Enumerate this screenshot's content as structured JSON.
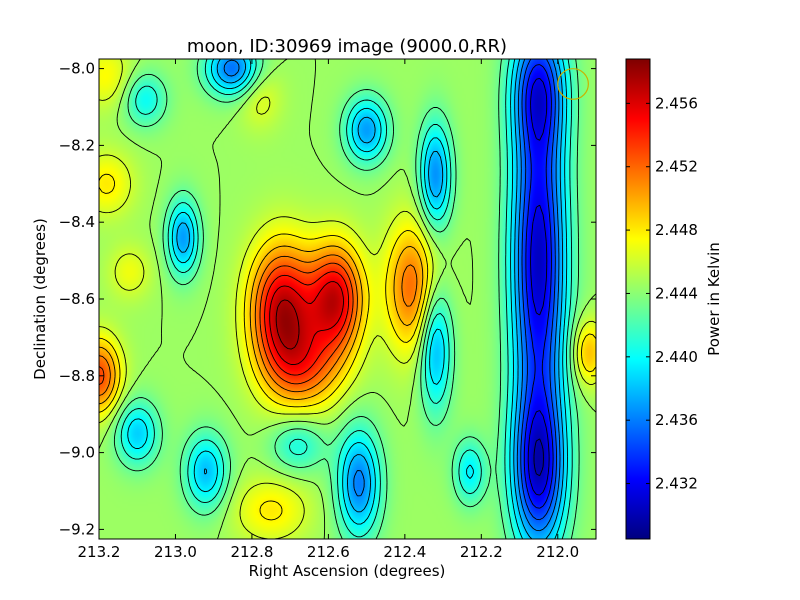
{
  "chart_data": {
    "type": "heatmap",
    "title": "moon, ID:30969 image (9000.0,RR)",
    "xlabel": "Right Ascension (degrees)",
    "ylabel": "Declination (degrees)",
    "colorbar_label": "Power in Kelvin",
    "colormap": "jet",
    "contours": true,
    "grid": false,
    "xlim": [
      213.2,
      211.9
    ],
    "ylim": [
      -9.225,
      -7.975
    ],
    "clim": [
      2.4285,
      2.4588
    ],
    "x_ticks": [
      213.2,
      213.0,
      212.8,
      212.6,
      212.4,
      212.2,
      212.0
    ],
    "x_tick_labels": [
      "213.2",
      "213.0",
      "212.8",
      "212.6",
      "212.4",
      "212.2",
      "212.0"
    ],
    "y_ticks": [
      -8.0,
      -8.2,
      -8.4,
      -8.6,
      -8.8,
      -9.0,
      -9.2
    ],
    "y_tick_labels": [
      "−8.0",
      "−8.2",
      "−8.4",
      "−8.6",
      "−8.8",
      "−9.0",
      "−9.2"
    ],
    "colorbar_ticks": [
      2.456,
      2.452,
      2.448,
      2.444,
      2.44,
      2.436,
      2.432
    ],
    "colorbar_tick_labels": [
      "2.456",
      "2.452",
      "2.448",
      "2.444",
      "2.440",
      "2.436",
      "2.432"
    ],
    "base_level": 2.4445,
    "features": [
      {
        "ra": 212.72,
        "dec": -8.63,
        "amplitude": 0.0125,
        "sigma_ra": 0.06,
        "sigma_dec": 0.12
      },
      {
        "ra": 212.58,
        "dec": -8.6,
        "amplitude": 0.0115,
        "sigma_ra": 0.05,
        "sigma_dec": 0.1
      },
      {
        "ra": 212.66,
        "dec": -8.78,
        "amplitude": 0.006,
        "sigma_ra": 0.07,
        "sigma_dec": 0.08
      },
      {
        "ra": 212.38,
        "dec": -8.57,
        "amplitude": 0.0075,
        "sigma_ra": 0.05,
        "sigma_dec": 0.12
      },
      {
        "ra": 213.2,
        "dec": -8.8,
        "amplitude": 0.0085,
        "sigma_ra": 0.04,
        "sigma_dec": 0.07
      },
      {
        "ra": 211.92,
        "dec": -8.74,
        "amplitude": 0.005,
        "sigma_ra": 0.03,
        "sigma_dec": 0.06
      },
      {
        "ra": 213.18,
        "dec": -8.3,
        "amplitude": 0.0035,
        "sigma_ra": 0.05,
        "sigma_dec": 0.06
      },
      {
        "ra": 213.18,
        "dec": -8.02,
        "amplitude": 0.003,
        "sigma_ra": 0.05,
        "sigma_dec": 0.06
      },
      {
        "ra": 213.12,
        "dec": -8.53,
        "amplitude": 0.0025,
        "sigma_ra": 0.04,
        "sigma_dec": 0.05
      },
      {
        "ra": 212.75,
        "dec": -9.15,
        "amplitude": 0.0035,
        "sigma_ra": 0.07,
        "sigma_dec": 0.06
      },
      {
        "ra": 212.78,
        "dec": -8.07,
        "amplitude": 0.0025,
        "sigma_ra": 0.04,
        "sigma_dec": 0.06
      },
      {
        "ra": 212.05,
        "dec": -8.5,
        "amplitude": -0.014,
        "sigma_ra": 0.05,
        "sigma_dec": 0.3
      },
      {
        "ra": 212.05,
        "dec": -9.05,
        "amplitude": -0.012,
        "sigma_ra": 0.05,
        "sigma_dec": 0.15
      },
      {
        "ra": 212.05,
        "dec": -8.05,
        "amplitude": -0.009,
        "sigma_ra": 0.05,
        "sigma_dec": 0.12
      },
      {
        "ra": 212.32,
        "dec": -8.28,
        "amplitude": -0.008,
        "sigma_ra": 0.03,
        "sigma_dec": 0.1
      },
      {
        "ra": 212.32,
        "dec": -8.72,
        "amplitude": -0.0075,
        "sigma_ra": 0.03,
        "sigma_dec": 0.12
      },
      {
        "ra": 212.5,
        "dec": -8.16,
        "amplitude": -0.0075,
        "sigma_ra": 0.04,
        "sigma_dec": 0.06
      },
      {
        "ra": 212.52,
        "dec": -9.08,
        "amplitude": -0.0085,
        "sigma_ra": 0.04,
        "sigma_dec": 0.1
      },
      {
        "ra": 212.85,
        "dec": -8.0,
        "amplitude": -0.009,
        "sigma_ra": 0.05,
        "sigma_dec": 0.05
      },
      {
        "ra": 212.98,
        "dec": -8.44,
        "amplitude": -0.0075,
        "sigma_ra": 0.03,
        "sigma_dec": 0.07
      },
      {
        "ra": 213.1,
        "dec": -8.95,
        "amplitude": -0.006,
        "sigma_ra": 0.04,
        "sigma_dec": 0.06
      },
      {
        "ra": 212.92,
        "dec": -9.05,
        "amplitude": -0.0065,
        "sigma_ra": 0.04,
        "sigma_dec": 0.07
      },
      {
        "ra": 212.68,
        "dec": -8.98,
        "amplitude": -0.004,
        "sigma_ra": 0.05,
        "sigma_dec": 0.05
      },
      {
        "ra": 212.23,
        "dec": -9.05,
        "amplitude": -0.005,
        "sigma_ra": 0.03,
        "sigma_dec": 0.06
      },
      {
        "ra": 213.08,
        "dec": -8.08,
        "amplitude": -0.0045,
        "sigma_ra": 0.04,
        "sigma_dec": 0.05
      }
    ],
    "marker": {
      "ra": 211.96,
      "dec": -8.04,
      "radius_deg": 0.04,
      "color": "#c8b400"
    }
  }
}
